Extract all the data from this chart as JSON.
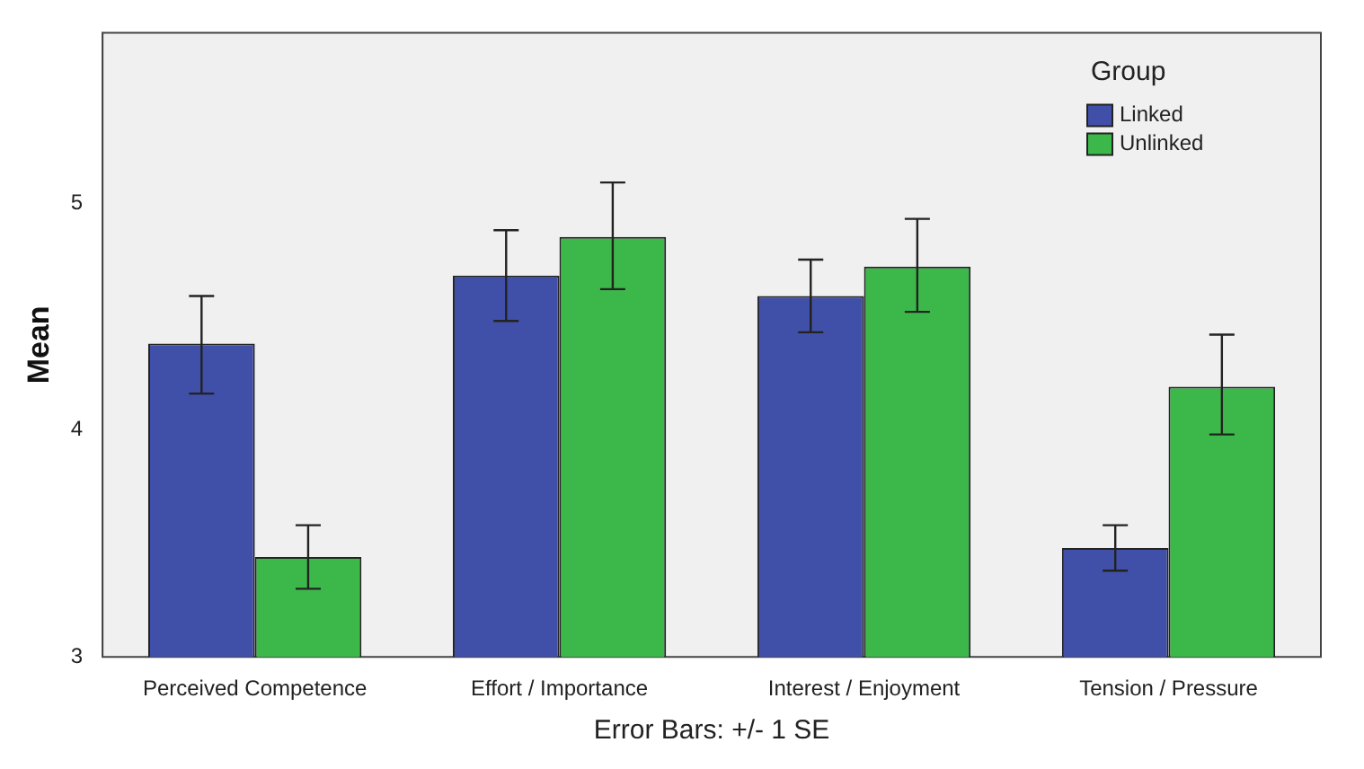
{
  "chart_data": {
    "type": "bar",
    "ylabel": "Mean",
    "legend_title": "Group",
    "legend": "top right",
    "grid": false,
    "categories": [
      "Perceived Competence",
      "Effort / Importance",
      "Interest / Enjoyment",
      "Tension / Pressure"
    ],
    "series": [
      {
        "name": "Linked",
        "color": "#4050a8",
        "values": [
          4.38,
          4.68,
          4.59,
          3.48
        ],
        "errors": [
          [
            4.16,
            4.59
          ],
          [
            4.48,
            4.88
          ],
          [
            4.43,
            4.75
          ],
          [
            3.38,
            3.58
          ]
        ]
      },
      {
        "name": "Unlinked",
        "color": "#3cb84a",
        "values": [
          3.44,
          4.85,
          4.72,
          4.19
        ],
        "errors": [
          [
            3.3,
            3.58
          ],
          [
            4.62,
            5.09
          ],
          [
            4.52,
            4.93
          ],
          [
            3.98,
            4.42
          ]
        ]
      }
    ],
    "ylim": [
      3,
      5.75
    ],
    "yticks": [
      3,
      4,
      5
    ],
    "annotations": [
      "Error Bars: +/- 1 SE"
    ]
  }
}
